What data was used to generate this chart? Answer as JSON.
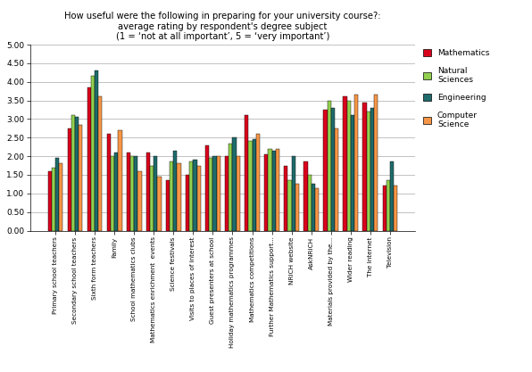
{
  "title": "How useful were the following in preparing for your university course?:\naverage rating by respondent's degree subject\n(1 = ‘not at all important’, 5 = ‘very important’)",
  "categories": [
    "Primary school teachers",
    "Secondary school teachers",
    "Sixth form teachers",
    "Family",
    "School mathematics clubs",
    "Mathematics enrichment  events",
    "Science festivals",
    "Visits to places of interest",
    "Guest presenters at school",
    "Holiday mathematics programmes",
    "Mathematics competitions",
    "Further Mathematics support...",
    "NRICH website",
    "AskNRICH",
    "Materials provided by the...",
    "Wider reading",
    "The Internet",
    "Television"
  ],
  "series": {
    "Mathematics": [
      1.6,
      2.75,
      3.85,
      2.6,
      2.1,
      2.1,
      1.35,
      1.5,
      2.3,
      2.0,
      3.1,
      2.05,
      1.75,
      1.85,
      3.25,
      3.6,
      3.45,
      1.2
    ],
    "Natural Sciences": [
      1.7,
      3.1,
      4.15,
      2.0,
      2.0,
      1.75,
      1.85,
      1.85,
      1.95,
      2.35,
      2.4,
      2.2,
      1.35,
      1.5,
      3.5,
      3.5,
      3.2,
      1.35
    ],
    "Engineering": [
      1.95,
      3.05,
      4.3,
      2.1,
      2.0,
      2.0,
      2.15,
      1.9,
      2.0,
      2.5,
      2.45,
      2.15,
      2.0,
      1.25,
      3.3,
      3.1,
      3.3,
      1.85
    ],
    "Computer Science": [
      1.8,
      2.85,
      3.6,
      2.7,
      1.6,
      1.45,
      1.8,
      1.75,
      2.0,
      2.0,
      2.6,
      2.2,
      1.25,
      1.15,
      2.75,
      3.65,
      3.65,
      1.2
    ]
  },
  "colors": {
    "Mathematics": "#d9001c",
    "Natural Sciences": "#92d050",
    "Engineering": "#1f6b6b",
    "Computer Science": "#f79646"
  },
  "ylim": [
    0.0,
    5.0
  ],
  "yticks": [
    0.0,
    0.5,
    1.0,
    1.5,
    2.0,
    2.5,
    3.0,
    3.5,
    4.0,
    4.5,
    5.0
  ],
  "legend_labels": [
    "Mathematics",
    "Natural\nSciences",
    "Engineering",
    "Computer\nScience"
  ],
  "legend_colors": [
    "#d9001c",
    "#92d050",
    "#1f6b6b",
    "#f79646"
  ],
  "bar_width": 0.19,
  "figsize": [
    5.96,
    4.17
  ],
  "dpi": 100
}
